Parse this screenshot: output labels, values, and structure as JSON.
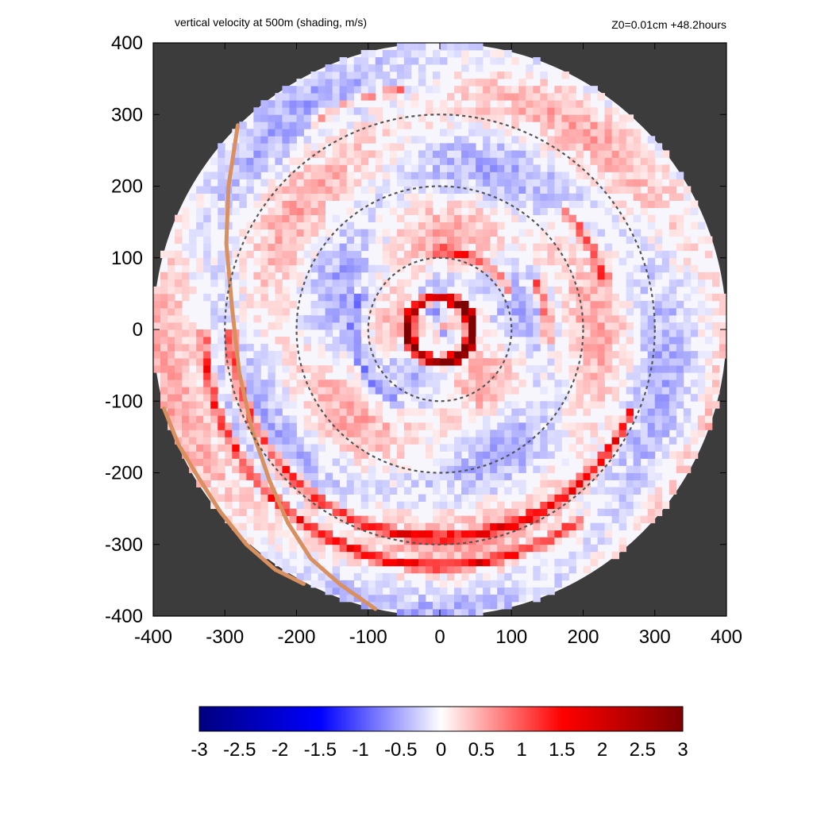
{
  "figure": {
    "title_left": "vertical velocity at 500m (shading, m/s)",
    "title_right": "Z0=0.01cm  +48.2hours",
    "background_color": "#3c3c3c"
  },
  "chart_data": {
    "type": "heatmap",
    "title": "vertical velocity at 500m (shading, m/s)",
    "subtitle": "Z0=0.01cm  +48.2hours",
    "xlim": [
      -400,
      400
    ],
    "ylim": [
      -400,
      400
    ],
    "x_ticks": [
      -400,
      -300,
      -200,
      -100,
      0,
      100,
      200,
      300,
      400
    ],
    "y_ticks": [
      -400,
      -300,
      -200,
      -100,
      0,
      100,
      200,
      300,
      400
    ],
    "x_tick_labels": [
      "-400",
      "-300",
      "-200",
      "-100",
      "0",
      "100",
      "200",
      "300",
      "400"
    ],
    "y_tick_labels": [
      "400",
      "300",
      "200",
      "100",
      "0",
      "-100",
      "-200",
      "-300",
      "-400"
    ],
    "domain_radius": 400,
    "reference_circles": [
      100,
      200,
      300
    ],
    "colorbar": {
      "min": -3,
      "max": 3,
      "ticks": [
        -3,
        -2.5,
        -2,
        -1.5,
        -1,
        -0.5,
        0,
        0.5,
        1,
        1.5,
        2,
        2.5,
        3
      ],
      "tick_labels": [
        "-3",
        "-2.5",
        "-2",
        "-1.5",
        "-1",
        "-0.5",
        "0",
        "0.5",
        "1",
        "1.5",
        "2",
        "2.5",
        "3"
      ],
      "colors": [
        "#000080",
        "#0000ff",
        "#ffffff",
        "#ff0000",
        "#800000"
      ]
    },
    "coastlines": [
      [
        [
          -282,
          285
        ],
        [
          -295,
          200
        ],
        [
          -298,
          120
        ],
        [
          -290,
          30
        ],
        [
          -280,
          -60
        ],
        [
          -262,
          -140
        ],
        [
          -238,
          -210
        ],
        [
          -212,
          -270
        ],
        [
          -180,
          -320
        ],
        [
          -140,
          -355
        ],
        [
          -90,
          -390
        ]
      ],
      [
        [
          -385,
          -110
        ],
        [
          -365,
          -160
        ],
        [
          -338,
          -205
        ],
        [
          -306,
          -255
        ],
        [
          -270,
          -300
        ],
        [
          -230,
          -335
        ],
        [
          -190,
          -355
        ]
      ]
    ],
    "coastline_color": "#d9905e",
    "features": [
      {
        "r": 45,
        "theta_deg": 330,
        "width": 80,
        "w": 2.6
      },
      {
        "r": 45,
        "theta_deg": 60,
        "width": 120,
        "w": 2.0
      },
      {
        "r": 110,
        "theta_deg": 60,
        "width": 70,
        "w": 1.4
      },
      {
        "r": 150,
        "theta_deg": 10,
        "width": 50,
        "w": 1.6
      },
      {
        "r": 240,
        "theta_deg": 30,
        "width": 60,
        "w": 1.4
      },
      {
        "r": 290,
        "theta_deg": 330,
        "width": 40,
        "w": 2.0
      },
      {
        "r": 330,
        "theta_deg": 300,
        "width": 40,
        "w": 1.8
      },
      {
        "r": 340,
        "theta_deg": 110,
        "width": 70,
        "w": 1.0
      },
      {
        "r": 300,
        "theta_deg": 225,
        "width": 60,
        "w": 0.8
      },
      {
        "r": 120,
        "theta_deg": 200,
        "width": 90,
        "w": -0.8
      }
    ]
  }
}
